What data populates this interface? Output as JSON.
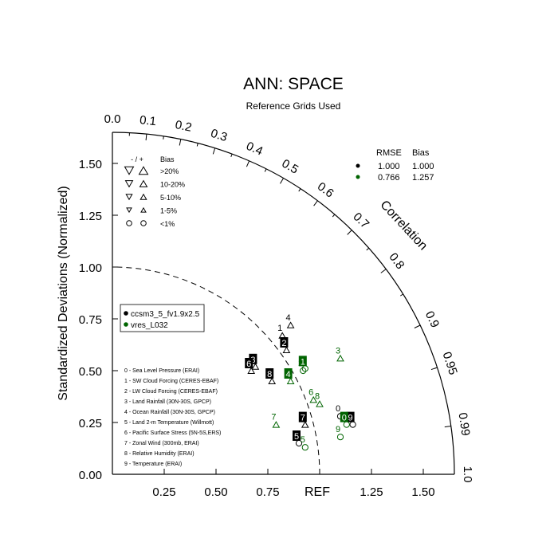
{
  "chart_data": {
    "type": "scatter",
    "subtype": "taylor-diagram",
    "title": "ANN: SPACE",
    "subtitle": "Reference Grids Used",
    "ylabel": "Standardized Deviations (Normalized)",
    "ref_label": "REF",
    "corr_axis_label": "Correlation",
    "radial_max": 1.65,
    "ylim": [
      0,
      1.65
    ],
    "y_ticks": [
      "0.00",
      "0.25",
      "0.50",
      "0.75",
      "1.00",
      "1.25",
      "1.50"
    ],
    "x_ticks": [
      "0.25",
      "0.50",
      "0.75",
      "1.25",
      "1.50"
    ],
    "corr_ticks": [
      "0.0",
      "0.1",
      "0.2",
      "0.3",
      "0.4",
      "0.5",
      "0.6",
      "0.7",
      "0.8",
      "0.9",
      "0.95",
      "0.99",
      "1.0"
    ],
    "bias_legend": {
      "header_sign": "- / +",
      "header_bias": "Bias",
      "rows": [
        ">20%",
        "10-20%",
        "5-10%",
        "1-5%",
        "<1%"
      ]
    },
    "stats_legend": {
      "header_rmse": "RMSE",
      "header_bias": "Bias",
      "rows": [
        {
          "color": "#000000",
          "rmse": "1.000",
          "bias": "1.000"
        },
        {
          "color": "#006400",
          "rmse": "0.766",
          "bias": "1.257"
        }
      ]
    },
    "series": [
      {
        "name": "ccsm3_5_fv1.9x2.5",
        "color": "#000000"
      },
      {
        "name": "vres_L032",
        "color": "#006400"
      }
    ],
    "variables": [
      "0 - Sea Level Pressure (ERAI)",
      "1 - SW Cloud Forcing (CERES-EBAF)",
      "2 - LW Cloud Forcing (CERES-EBAF)",
      "3 - Land Rainfall (30N-30S, GPCP)",
      "4 - Ocean Rainfall (30N-30S, GPCP)",
      "5 - Land 2-m Temperature (Willmott)",
      "6 - Pacific Surface Stress (5N-5S,ERS)",
      "7 - Zonal Wind (300mb, ERAI)",
      "8 - Relative Humidity (ERAI)",
      "9 - Temperature (ERAI)"
    ],
    "points": [
      {
        "series": 0,
        "var": "0",
        "x": 1.1,
        "y": 0.28,
        "marker": "circle",
        "label_style": "plain"
      },
      {
        "series": 0,
        "var": "1",
        "x": 0.82,
        "y": 0.67,
        "marker": "triangle-up",
        "label_style": "plain"
      },
      {
        "series": 0,
        "var": "2",
        "x": 0.84,
        "y": 0.6,
        "marker": "triangle-up",
        "label_style": "box"
      },
      {
        "series": 0,
        "var": "3",
        "x": 0.69,
        "y": 0.52,
        "marker": "triangle-up",
        "label_style": "box"
      },
      {
        "series": 0,
        "var": "4",
        "x": 0.86,
        "y": 0.72,
        "marker": "triangle-up",
        "label_style": "plain"
      },
      {
        "series": 0,
        "var": "5",
        "x": 0.9,
        "y": 0.15,
        "marker": "circle",
        "label_style": "box"
      },
      {
        "series": 0,
        "var": "6",
        "x": 0.67,
        "y": 0.5,
        "marker": "triangle-up",
        "label_style": "box"
      },
      {
        "series": 0,
        "var": "7",
        "x": 0.93,
        "y": 0.24,
        "marker": "triangle-up",
        "label_style": "box"
      },
      {
        "series": 0,
        "var": "8",
        "x": 0.77,
        "y": 0.45,
        "marker": "triangle-up",
        "label_style": "box"
      },
      {
        "series": 0,
        "var": "9",
        "x": 1.16,
        "y": 0.24,
        "marker": "circle",
        "label_style": "box"
      },
      {
        "series": 1,
        "var": "0",
        "x": 1.13,
        "y": 0.24,
        "marker": "circle",
        "label_style": "box"
      },
      {
        "series": 1,
        "var": "1",
        "x": 0.93,
        "y": 0.51,
        "marker": "circle",
        "label_style": "box"
      },
      {
        "series": 1,
        "var": "2",
        "x": 0.92,
        "y": 0.5,
        "marker": "circle",
        "label_style": "plain"
      },
      {
        "series": 1,
        "var": "3",
        "x": 1.1,
        "y": 0.56,
        "marker": "triangle-up",
        "label_style": "plain"
      },
      {
        "series": 1,
        "var": "4",
        "x": 0.86,
        "y": 0.45,
        "marker": "triangle-up",
        "label_style": "box"
      },
      {
        "series": 1,
        "var": "5",
        "x": 0.93,
        "y": 0.13,
        "marker": "circle",
        "label_style": "plain"
      },
      {
        "series": 1,
        "var": "6",
        "x": 0.97,
        "y": 0.36,
        "marker": "triangle-up",
        "label_style": "plain"
      },
      {
        "series": 1,
        "var": "7",
        "x": 0.79,
        "y": 0.24,
        "marker": "triangle-up",
        "label_style": "plain"
      },
      {
        "series": 1,
        "var": "8",
        "x": 1.0,
        "y": 0.34,
        "marker": "triangle-up",
        "label_style": "plain"
      },
      {
        "series": 1,
        "var": "9",
        "x": 1.1,
        "y": 0.18,
        "marker": "circle",
        "label_style": "plain"
      }
    ]
  }
}
